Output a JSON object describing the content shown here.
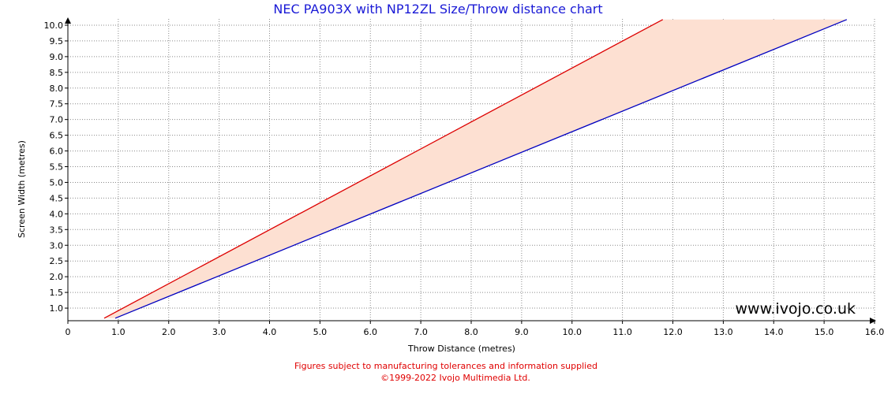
{
  "chart_data": {
    "type": "area",
    "title": "NEC PA903X with NP12ZL Size/Throw distance chart",
    "xlabel": "Throw Distance (metres)",
    "ylabel": "Screen Width (metres)",
    "xlim": [
      0,
      16
    ],
    "ylim": [
      0.6,
      10.2
    ],
    "x_ticks": [
      "0",
      "1.0",
      "2.0",
      "3.0",
      "4.0",
      "5.0",
      "6.0",
      "7.0",
      "8.0",
      "9.0",
      "10.0",
      "11.0",
      "12.0",
      "13.0",
      "14.0",
      "15.0",
      "16.0"
    ],
    "y_ticks": [
      "1.0",
      "1.5",
      "2.0",
      "2.5",
      "3.0",
      "3.5",
      "4.0",
      "4.5",
      "5.0",
      "5.5",
      "6.0",
      "6.5",
      "7.0",
      "7.5",
      "8.0",
      "8.5",
      "9.0",
      "9.5",
      "10.0"
    ],
    "grid": true,
    "series": [
      {
        "color": "#dd0000",
        "points": [
          [
            0.72,
            0.68
          ],
          [
            11.8,
            10.18
          ]
        ]
      },
      {
        "color": "#0000c0",
        "points": [
          [
            0.94,
            0.68
          ],
          [
            15.45,
            10.18
          ]
        ]
      }
    ],
    "fill_color": "#fde0d2"
  },
  "watermark": "www.ivojo.co.uk",
  "footer": {
    "line1": "Figures subject to manufacturing tolerances and information supplied",
    "line2": "©1999-2022 Ivojo Multimedia Ltd."
  }
}
